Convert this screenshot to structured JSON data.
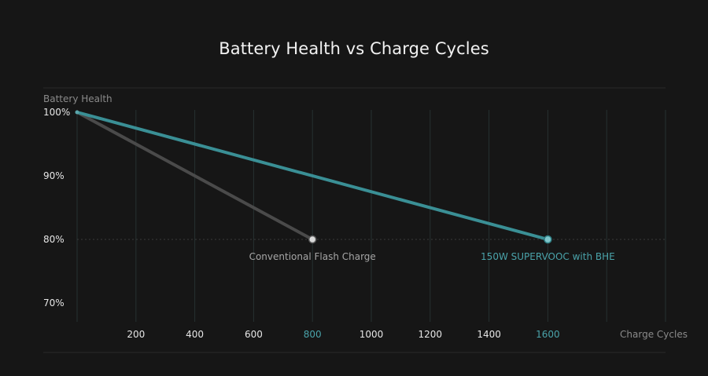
{
  "chart_data": {
    "type": "line",
    "title": "Battery Health vs Charge Cycles",
    "ylabel": "Battery Health",
    "xlabel": "Charge Cycles",
    "xlim": [
      0,
      2000
    ],
    "ylim": [
      66,
      100
    ],
    "x_ticks": [
      {
        "value": 200,
        "label": "200"
      },
      {
        "value": 400,
        "label": "400"
      },
      {
        "value": 600,
        "label": "600"
      },
      {
        "value": 800,
        "label": "800"
      },
      {
        "value": 1000,
        "label": "1000"
      },
      {
        "value": 1200,
        "label": "1200"
      },
      {
        "value": 1400,
        "label": "1400"
      },
      {
        "value": 1600,
        "label": "1600"
      }
    ],
    "y_ticks": [
      {
        "value": 100,
        "label": "100%"
      },
      {
        "value": 90,
        "label": "90%"
      },
      {
        "value": 80,
        "label": "80%"
      },
      {
        "value": 70,
        "label": "70%"
      }
    ],
    "grid": true,
    "series": [
      {
        "name": "Conventional Flash Charge",
        "color": "#4a4a4a",
        "label_color": "#a6a6a6",
        "points": [
          {
            "x": 0,
            "y": 100
          },
          {
            "x": 800,
            "y": 80
          }
        ]
      },
      {
        "name": "150W SUPERVOOC with BHE",
        "color": "#3a8f95",
        "label_color": "#4aa3aa",
        "points": [
          {
            "x": 0,
            "y": 100
          },
          {
            "x": 1600,
            "y": 80
          }
        ]
      }
    ]
  },
  "colors": {
    "background": "#161616",
    "grid": "#2c3a3a",
    "tick_text": "#e6e6e6",
    "muted_text": "#8a8a8a",
    "accent_tick": "#4aa3aa"
  }
}
